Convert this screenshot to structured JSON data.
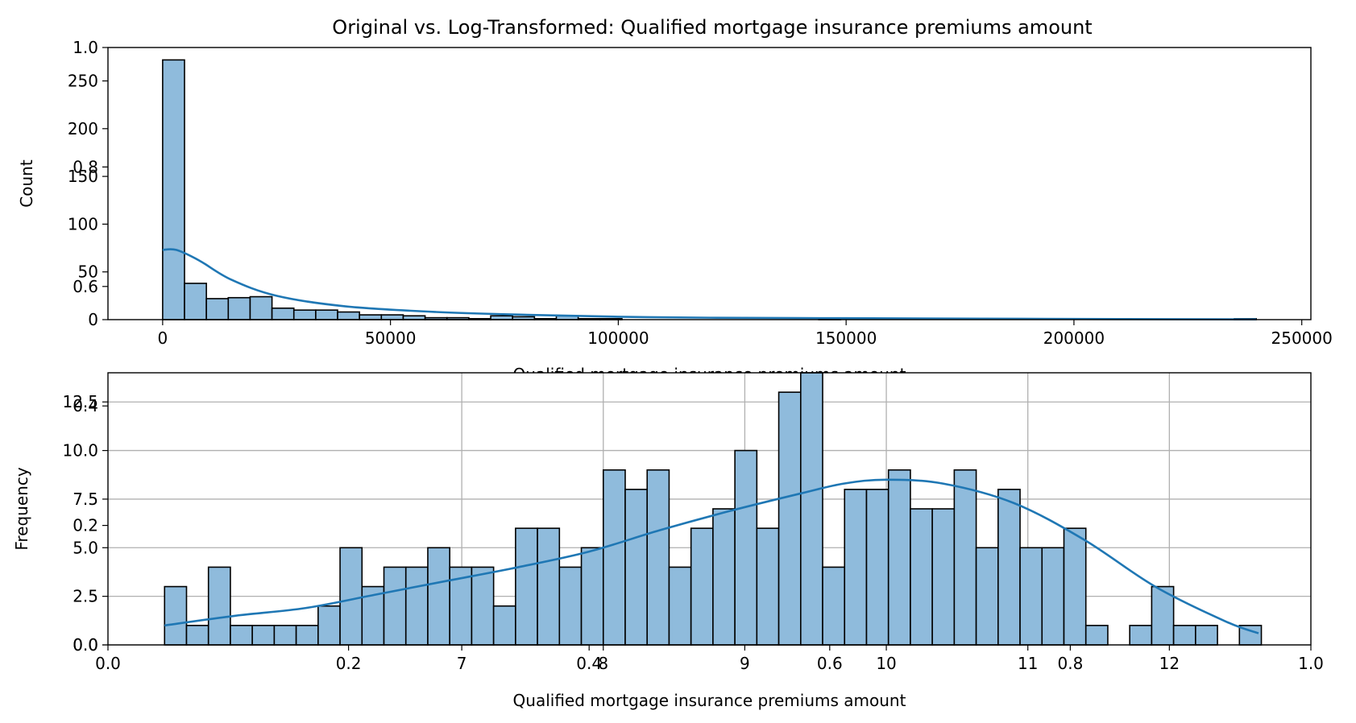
{
  "figure": {
    "title": "Original vs. Log-Transformed: Qualified mortgage insurance premiums amount",
    "ghost_axes": {
      "xticks": [
        "0.0",
        "0.2",
        "0.4",
        "0.6",
        "0.8",
        "1.0"
      ],
      "yticks": [
        "0.0",
        "0.2",
        "0.4",
        "0.6",
        "0.8",
        "1.0"
      ]
    }
  },
  "colors": {
    "bar_fill": "#8fbbdc",
    "bar_edge": "#000000",
    "kde_line": "#1f77b4",
    "grid": "#b0b0b0"
  },
  "chart_data": [
    {
      "type": "bar",
      "subtype": "histogram+kde",
      "xlabel": "Qualified mortgage insurance premiums amount",
      "ylabel": "Count",
      "xlim": [
        -12000,
        252000
      ],
      "ylim": [
        0,
        285
      ],
      "xticks": [
        0,
        50000,
        100000,
        150000,
        200000,
        250000
      ],
      "xtick_labels": [
        "0",
        "50000",
        "100000",
        "150000",
        "200000",
        "250000"
      ],
      "yticks": [
        0,
        50,
        100,
        150,
        200,
        250
      ],
      "ytick_labels": [
        "0",
        "50",
        "100",
        "150",
        "200",
        "250"
      ],
      "grid": false,
      "bin_start": 0,
      "bin_width": 4800,
      "values": [
        272,
        38,
        22,
        23,
        24,
        12,
        10,
        10,
        8,
        5,
        5,
        4,
        2,
        2,
        1,
        4,
        3,
        1,
        4,
        1,
        1,
        0,
        0,
        0,
        0,
        0,
        0,
        0,
        0,
        0,
        1,
        0,
        0,
        0,
        0,
        0,
        0,
        0,
        0,
        0,
        0,
        0,
        0,
        0,
        0,
        0,
        0,
        0,
        0,
        1
      ],
      "kde": {
        "x": [
          0,
          3000,
          8000,
          15000,
          25000,
          40000,
          60000,
          80000,
          100000,
          120000,
          150000,
          180000,
          210000,
          240000
        ],
        "y": [
          73,
          73,
          62,
          42,
          25,
          14,
          8,
          5,
          3,
          2,
          1.5,
          1,
          0.6,
          0.3
        ]
      }
    },
    {
      "type": "bar",
      "subtype": "histogram+kde",
      "xlabel": "Qualified mortgage insurance premiums amount",
      "ylabel": "Frequency",
      "xlim": [
        4.5,
        13.0
      ],
      "ylim": [
        0,
        14.0
      ],
      "xticks": [
        7,
        8,
        9,
        10,
        11,
        12
      ],
      "xtick_labels": [
        "7",
        "8",
        "9",
        "10",
        "11",
        "12"
      ],
      "yticks": [
        0,
        2.5,
        5.0,
        7.5,
        10.0,
        12.5
      ],
      "ytick_labels": [
        "0.0",
        "2.5",
        "5.0",
        "7.5",
        "10.0",
        "12.5"
      ],
      "grid": true,
      "bin_start": 4.9,
      "bin_width": 0.155,
      "values": [
        3,
        1,
        4,
        1,
        1,
        1,
        1,
        2,
        5,
        3,
        4,
        4,
        5,
        4,
        4,
        2,
        6,
        6,
        4,
        5,
        9,
        8,
        9,
        4,
        6,
        7,
        10,
        6,
        13,
        14,
        4,
        8,
        8,
        9,
        7,
        7,
        9,
        5,
        8,
        5,
        5,
        6,
        1,
        0,
        1,
        3,
        1,
        1,
        0,
        1
      ],
      "kde": {
        "x": [
          4.9,
          5.4,
          5.9,
          6.4,
          6.9,
          7.4,
          7.9,
          8.4,
          8.9,
          9.4,
          9.7,
          10.0,
          10.4,
          10.9,
          11.4,
          11.9,
          12.4,
          12.63
        ],
        "y": [
          1.0,
          1.5,
          1.9,
          2.6,
          3.3,
          4.0,
          4.8,
          5.9,
          6.9,
          7.8,
          8.3,
          8.5,
          8.3,
          7.3,
          5.4,
          3.0,
          1.2,
          0.6
        ]
      }
    }
  ]
}
